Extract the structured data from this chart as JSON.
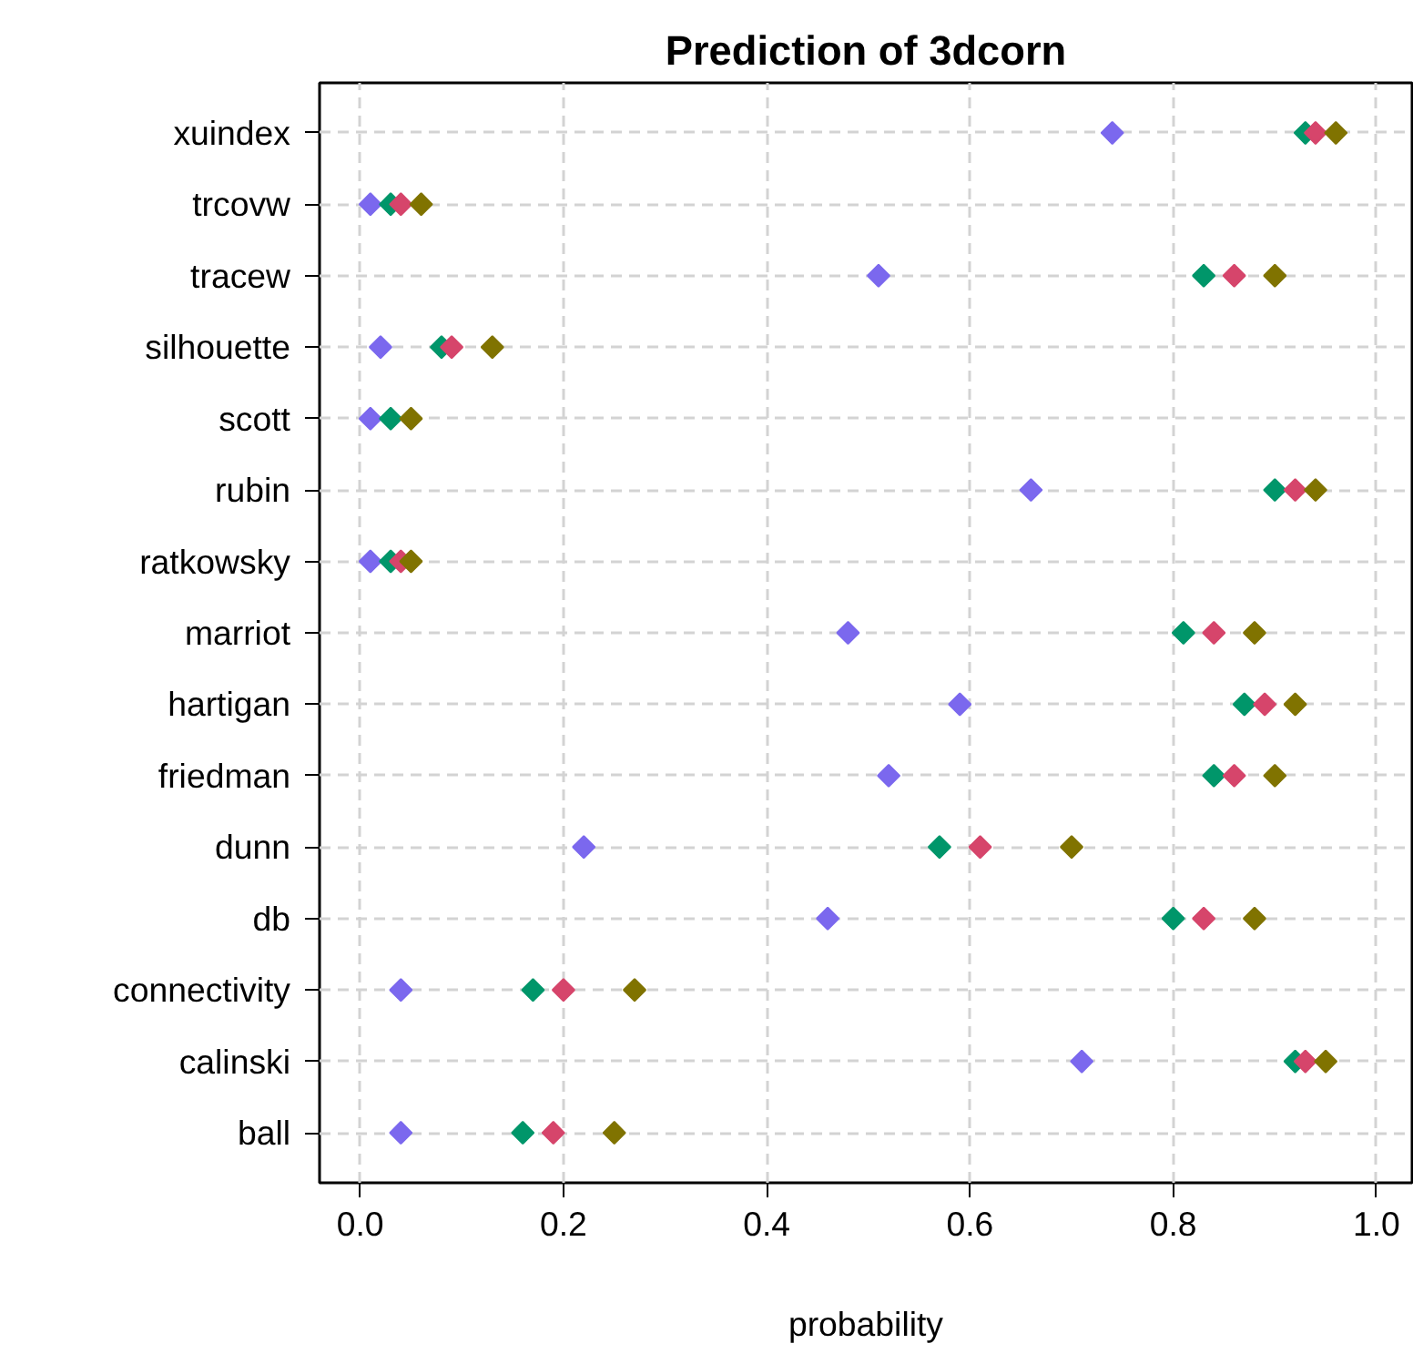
{
  "chart_data": {
    "type": "scatter",
    "title": "Prediction of 3dcorn",
    "xlabel": "probability",
    "orientation": "horizontal",
    "categories": [
      "xuindex",
      "trcovw",
      "tracew",
      "silhouette",
      "scott",
      "rubin",
      "ratkowsky",
      "marriot",
      "hartigan",
      "friedman",
      "dunn",
      "db",
      "connectivity",
      "calinski",
      "ball"
    ],
    "series": [
      {
        "color": "#7b68ee",
        "values": [
          0.74,
          0.01,
          0.51,
          0.02,
          0.01,
          0.66,
          0.01,
          0.48,
          0.59,
          0.52,
          0.22,
          0.46,
          0.04,
          0.71,
          0.04
        ]
      },
      {
        "color": "#00966a",
        "values": [
          0.93,
          0.03,
          0.83,
          0.08,
          0.03,
          0.9,
          0.03,
          0.81,
          0.87,
          0.84,
          0.57,
          0.8,
          0.17,
          0.92,
          0.16
        ]
      },
      {
        "color": "#d6456b",
        "values": [
          0.94,
          0.04,
          0.86,
          0.09,
          null,
          0.92,
          0.04,
          0.84,
          0.89,
          0.86,
          0.61,
          0.83,
          0.2,
          0.93,
          0.19
        ]
      },
      {
        "color": "#807300",
        "values": [
          0.96,
          0.06,
          0.9,
          0.13,
          0.05,
          0.94,
          0.05,
          0.88,
          0.92,
          0.9,
          0.7,
          0.88,
          0.27,
          0.95,
          0.25
        ]
      }
    ],
    "xlim": [
      -0.04,
      1.035
    ],
    "xticks": [
      {
        "value": 0,
        "label": "0.0"
      },
      {
        "value": 0.2,
        "label": "0.2"
      },
      {
        "value": 0.4,
        "label": "0.4"
      },
      {
        "value": 0.6,
        "label": "0.6"
      },
      {
        "value": 0.8,
        "label": "0.8"
      },
      {
        "value": 1,
        "label": "1.0"
      }
    ],
    "grid": true,
    "marker": "diamond"
  }
}
